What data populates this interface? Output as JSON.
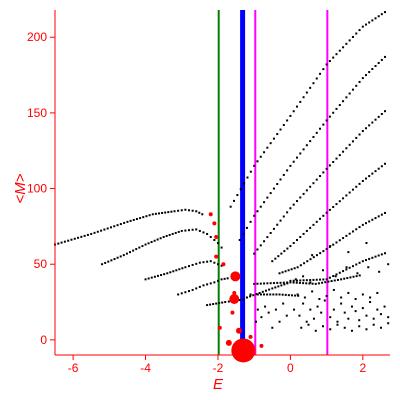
{
  "chart_data": {
    "type": "scatter",
    "xlabel": "E",
    "ylabel": "<M>",
    "xlim": [
      -6.5,
      2.75
    ],
    "ylim": [
      -10,
      218
    ],
    "x_ticks": [
      -6,
      -4,
      -2,
      0,
      2
    ],
    "y_ticks": [
      0,
      50,
      100,
      150,
      200
    ],
    "grid": false,
    "colors": {
      "axis": "#ff0000",
      "points": "#000000",
      "highlight": "#ff0000",
      "line_green": "#008000",
      "line_blue": "#0000ff",
      "line_magenta": "#ff00ff"
    },
    "vertical_lines": [
      {
        "x": -1.98,
        "color": "line_green",
        "width": 2
      },
      {
        "x": -1.32,
        "color": "line_blue",
        "width": 5
      },
      {
        "x": -0.97,
        "color": "line_magenta",
        "width": 2
      },
      {
        "x": 1.02,
        "color": "line_magenta",
        "width": 2
      }
    ],
    "branches": [
      {
        "points": [
          [
            -6.5,
            63
          ],
          [
            -5.5,
            70
          ],
          [
            -4.5,
            78
          ],
          [
            -3.8,
            83
          ],
          [
            -3.2,
            85
          ],
          [
            -2.9,
            86
          ],
          [
            -2.6,
            85
          ],
          [
            -2.35,
            82
          ]
        ]
      },
      {
        "points": [
          [
            -5.2,
            50
          ],
          [
            -4.6,
            56
          ],
          [
            -4.0,
            63
          ],
          [
            -3.5,
            68
          ],
          [
            -3.0,
            72
          ],
          [
            -2.6,
            73
          ],
          [
            -2.3,
            70
          ],
          [
            -2.0,
            64
          ],
          [
            -1.8,
            58
          ]
        ]
      },
      {
        "points": [
          [
            -4.0,
            40
          ],
          [
            -3.4,
            44
          ],
          [
            -2.9,
            48
          ],
          [
            -2.5,
            51
          ],
          [
            -2.2,
            52
          ],
          [
            -2.0,
            50
          ],
          [
            -1.8,
            48
          ]
        ]
      },
      {
        "points": [
          [
            -3.1,
            30
          ],
          [
            -2.7,
            33
          ],
          [
            -2.4,
            36
          ],
          [
            -2.1,
            38
          ],
          [
            -1.9,
            40
          ],
          [
            -1.65,
            41
          ]
        ]
      },
      {
        "points": [
          [
            -2.3,
            23
          ],
          [
            -1.8,
            25
          ],
          [
            -1.5,
            26
          ],
          [
            -1.2,
            27
          ]
        ]
      },
      {
        "points": [
          [
            -1.65,
            88
          ],
          [
            -1.0,
            115
          ],
          [
            0.0,
            148
          ],
          [
            1.0,
            182
          ],
          [
            2.0,
            207
          ],
          [
            2.7,
            218
          ]
        ]
      },
      {
        "points": [
          [
            -1.4,
            66
          ],
          [
            -1.0,
            82
          ],
          [
            0.0,
            115
          ],
          [
            1.0,
            145
          ],
          [
            2.0,
            173
          ],
          [
            2.7,
            189
          ]
        ]
      },
      {
        "points": [
          [
            -1.0,
            57
          ],
          [
            0.0,
            87
          ],
          [
            1.0,
            113
          ],
          [
            2.0,
            138
          ],
          [
            2.7,
            153
          ]
        ]
      },
      {
        "points": [
          [
            -0.5,
            52
          ],
          [
            0.0,
            62
          ],
          [
            1.0,
            84
          ],
          [
            2.0,
            105
          ],
          [
            2.7,
            118
          ]
        ]
      },
      {
        "points": [
          [
            -0.3,
            44
          ],
          [
            0.2,
            48
          ],
          [
            1.0,
            60
          ],
          [
            2.0,
            76
          ],
          [
            2.7,
            85
          ]
        ]
      },
      {
        "points": [
          [
            0.0,
            39
          ],
          [
            1.0,
            40
          ],
          [
            2.0,
            52
          ],
          [
            2.7,
            58
          ]
        ]
      },
      {
        "points": [
          [
            -1.0,
            37
          ],
          [
            0.0,
            38
          ],
          [
            0.7,
            37
          ],
          [
            1.4,
            40
          ],
          [
            2.0,
            43
          ]
        ]
      },
      {
        "points": [
          [
            -1.2,
            28
          ],
          [
            -0.5,
            34
          ],
          [
            0.0,
            38
          ]
        ]
      },
      {
        "points": [
          [
            -0.9,
            30
          ],
          [
            -0.3,
            30
          ],
          [
            0.3,
            29
          ]
        ]
      }
    ],
    "scattered": [
      [
        0.1,
        20
      ],
      [
        0.25,
        16
      ],
      [
        0.35,
        24
      ],
      [
        0.45,
        12
      ],
      [
        0.55,
        20
      ],
      [
        0.65,
        14
      ],
      [
        0.75,
        22
      ],
      [
        0.85,
        18
      ],
      [
        0.95,
        26
      ],
      [
        1.1,
        15
      ],
      [
        1.2,
        20
      ],
      [
        1.3,
        12
      ],
      [
        1.4,
        24
      ],
      [
        1.5,
        18
      ],
      [
        1.6,
        14
      ],
      [
        1.7,
        22
      ],
      [
        1.8,
        19
      ],
      [
        1.9,
        13
      ],
      [
        2.0,
        21
      ],
      [
        2.1,
        16
      ],
      [
        2.2,
        25
      ],
      [
        2.3,
        14
      ],
      [
        2.4,
        20
      ],
      [
        2.5,
        17
      ],
      [
        2.6,
        22
      ],
      [
        2.7,
        15
      ],
      [
        0.2,
        30
      ],
      [
        0.4,
        28
      ],
      [
        0.6,
        32
      ],
      [
        0.8,
        27
      ],
      [
        1.0,
        29
      ],
      [
        1.2,
        33
      ],
      [
        1.4,
        28
      ],
      [
        1.6,
        31
      ],
      [
        1.8,
        27
      ],
      [
        2.0,
        30
      ],
      [
        2.2,
        28
      ],
      [
        2.4,
        31
      ],
      [
        0.3,
        8
      ],
      [
        0.5,
        10
      ],
      [
        0.7,
        6
      ],
      [
        0.9,
        9
      ],
      [
        1.1,
        7
      ],
      [
        1.3,
        10
      ],
      [
        1.5,
        8
      ],
      [
        1.7,
        6
      ],
      [
        1.9,
        9
      ],
      [
        2.1,
        7
      ],
      [
        2.3,
        10
      ],
      [
        2.5,
        8
      ],
      [
        2.7,
        11
      ],
      [
        0.15,
        40
      ],
      [
        0.35,
        42
      ],
      [
        0.55,
        38
      ],
      [
        0.9,
        46
      ],
      [
        1.25,
        42
      ],
      [
        1.55,
        48
      ],
      [
        1.85,
        44
      ],
      [
        2.15,
        48
      ],
      [
        2.45,
        45
      ],
      [
        2.7,
        50
      ],
      [
        0.6,
        56
      ],
      [
        1.1,
        62
      ],
      [
        1.6,
        58
      ],
      [
        2.1,
        64
      ],
      [
        -0.2,
        24
      ],
      [
        -0.4,
        20
      ],
      [
        -0.6,
        18
      ],
      [
        -0.8,
        15
      ],
      [
        -0.3,
        12
      ],
      [
        -0.5,
        8
      ],
      [
        -0.7,
        22
      ],
      [
        -0.1,
        16
      ],
      [
        -0.9,
        20
      ],
      [
        -1.1,
        30
      ],
      [
        -0.95,
        12
      ]
    ],
    "highlights": [
      {
        "x": -1.52,
        "y": 42,
        "size": 5
      },
      {
        "x": -1.55,
        "y": 27,
        "size": 5
      },
      {
        "x": -1.42,
        "y": 6,
        "size": 3
      },
      {
        "x": -1.7,
        "y": -2,
        "size": 3
      },
      {
        "x": -1.3,
        "y": -7,
        "size": 12
      },
      {
        "x": -2.1,
        "y": 77,
        "size": 2
      },
      {
        "x": -2.05,
        "y": 68,
        "size": 2
      },
      {
        "x": -2.2,
        "y": 83,
        "size": 2
      },
      {
        "x": -1.85,
        "y": 50,
        "size": 2
      },
      {
        "x": -2.05,
        "y": 55,
        "size": 2
      },
      {
        "x": -1.55,
        "y": 31,
        "size": 2
      },
      {
        "x": -1.95,
        "y": 8,
        "size": 2
      },
      {
        "x": -1.6,
        "y": 18,
        "size": 2
      },
      {
        "x": -0.8,
        "y": -4,
        "size": 2
      },
      {
        "x": -1.1,
        "y": 2,
        "size": 2
      }
    ]
  }
}
